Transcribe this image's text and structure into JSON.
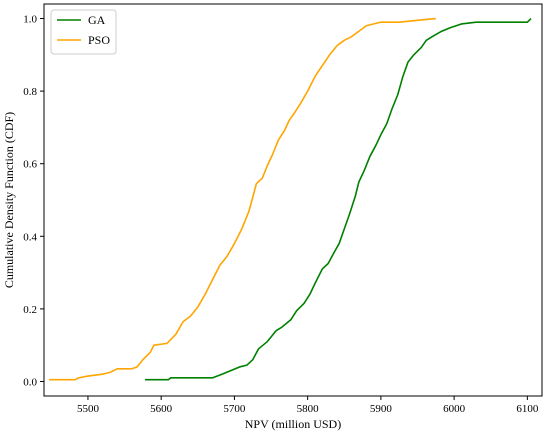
{
  "chart_data": {
    "type": "line",
    "title": "",
    "xlabel": "NPV (million USD)",
    "ylabel": "Cumulative Density Function (CDF)",
    "xlim": [
      5440,
      6120
    ],
    "ylim": [
      -0.04,
      1.04
    ],
    "x_ticks": [
      5500,
      5600,
      5700,
      5800,
      5900,
      6000,
      6100
    ],
    "y_ticks": [
      0.0,
      0.2,
      0.4,
      0.6,
      0.8,
      1.0
    ],
    "x_tick_labels": [
      "5500",
      "5600",
      "5700",
      "5800",
      "5900",
      "6000",
      "6100"
    ],
    "y_tick_labels": [
      "0.0",
      "0.2",
      "0.4",
      "0.6",
      "0.8",
      "1.0"
    ],
    "grid": false,
    "legend_position": "top-left",
    "series": [
      {
        "name": "GA",
        "color": "#008000",
        "points": [
          [
            5578,
            0.005
          ],
          [
            5610,
            0.005
          ],
          [
            5613,
            0.01
          ],
          [
            5670,
            0.01
          ],
          [
            5683,
            0.02
          ],
          [
            5695,
            0.03
          ],
          [
            5707,
            0.04
          ],
          [
            5717,
            0.045
          ],
          [
            5725,
            0.06
          ],
          [
            5733,
            0.09
          ],
          [
            5745,
            0.11
          ],
          [
            5757,
            0.14
          ],
          [
            5765,
            0.15
          ],
          [
            5777,
            0.17
          ],
          [
            5785,
            0.195
          ],
          [
            5795,
            0.215
          ],
          [
            5803,
            0.24
          ],
          [
            5810,
            0.27
          ],
          [
            5820,
            0.31
          ],
          [
            5828,
            0.325
          ],
          [
            5836,
            0.355
          ],
          [
            5843,
            0.38
          ],
          [
            5850,
            0.42
          ],
          [
            5857,
            0.46
          ],
          [
            5865,
            0.51
          ],
          [
            5870,
            0.55
          ],
          [
            5877,
            0.58
          ],
          [
            5885,
            0.62
          ],
          [
            5893,
            0.65
          ],
          [
            5900,
            0.68
          ],
          [
            5908,
            0.71
          ],
          [
            5915,
            0.75
          ],
          [
            5923,
            0.79
          ],
          [
            5930,
            0.84
          ],
          [
            5937,
            0.88
          ],
          [
            5945,
            0.9
          ],
          [
            5955,
            0.92
          ],
          [
            5962,
            0.94
          ],
          [
            5970,
            0.95
          ],
          [
            5983,
            0.965
          ],
          [
            5995,
            0.975
          ],
          [
            6010,
            0.985
          ],
          [
            6030,
            0.99
          ],
          [
            6045,
            0.99
          ],
          [
            6100,
            0.99
          ],
          [
            6105,
            1.0
          ]
        ]
      },
      {
        "name": "PSO",
        "color": "#FFA500",
        "points": [
          [
            5447,
            0.005
          ],
          [
            5483,
            0.005
          ],
          [
            5487,
            0.01
          ],
          [
            5500,
            0.015
          ],
          [
            5520,
            0.02
          ],
          [
            5530,
            0.025
          ],
          [
            5540,
            0.035
          ],
          [
            5560,
            0.035
          ],
          [
            5567,
            0.04
          ],
          [
            5575,
            0.06
          ],
          [
            5585,
            0.08
          ],
          [
            5590,
            0.1
          ],
          [
            5608,
            0.105
          ],
          [
            5620,
            0.13
          ],
          [
            5630,
            0.165
          ],
          [
            5640,
            0.18
          ],
          [
            5650,
            0.205
          ],
          [
            5660,
            0.24
          ],
          [
            5670,
            0.28
          ],
          [
            5680,
            0.32
          ],
          [
            5690,
            0.345
          ],
          [
            5700,
            0.38
          ],
          [
            5710,
            0.42
          ],
          [
            5720,
            0.47
          ],
          [
            5730,
            0.545
          ],
          [
            5738,
            0.56
          ],
          [
            5745,
            0.595
          ],
          [
            5752,
            0.625
          ],
          [
            5760,
            0.665
          ],
          [
            5768,
            0.69
          ],
          [
            5775,
            0.72
          ],
          [
            5782,
            0.74
          ],
          [
            5790,
            0.765
          ],
          [
            5800,
            0.8
          ],
          [
            5810,
            0.84
          ],
          [
            5820,
            0.87
          ],
          [
            5830,
            0.9
          ],
          [
            5840,
            0.925
          ],
          [
            5850,
            0.94
          ],
          [
            5860,
            0.95
          ],
          [
            5870,
            0.965
          ],
          [
            5880,
            0.98
          ],
          [
            5900,
            0.99
          ],
          [
            5925,
            0.99
          ],
          [
            5950,
            0.995
          ],
          [
            5975,
            1.0
          ]
        ]
      }
    ]
  }
}
